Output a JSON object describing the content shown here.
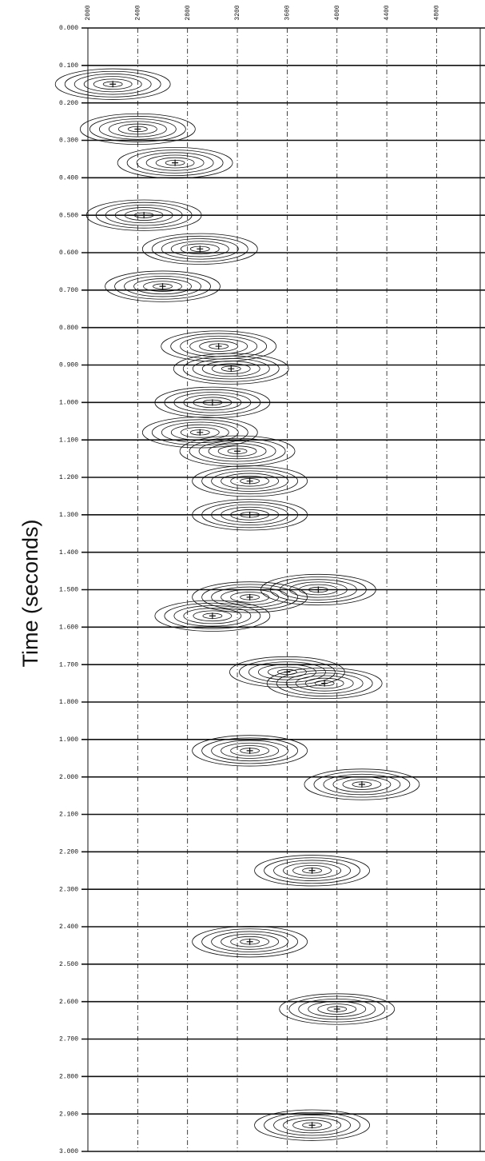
{
  "chart_data": {
    "type": "contour",
    "y_axis_label": "Time (seconds)",
    "xlim": [
      2000,
      5150
    ],
    "ylim": [
      0,
      3
    ],
    "y_inverted": true,
    "grid": true,
    "color": "#111111",
    "xticks": [
      2000,
      2400,
      2800,
      3200,
      3600,
      4000,
      4400,
      4800
    ],
    "yticks": [
      {
        "value": 0,
        "label": "0.000"
      },
      {
        "value": 0.1,
        "label": "0.100"
      },
      {
        "value": 0.2,
        "label": "0.200"
      },
      {
        "value": 0.3,
        "label": "0.300"
      },
      {
        "value": 0.4,
        "label": "0.400"
      },
      {
        "value": 0.5,
        "label": "0.500"
      },
      {
        "value": 0.6,
        "label": "0.600"
      },
      {
        "value": 0.7,
        "label": "0.700"
      },
      {
        "value": 0.8,
        "label": "0.800"
      },
      {
        "value": 0.9,
        "label": "0.900"
      },
      {
        "value": 1,
        "label": "1.000"
      },
      {
        "value": 1.1,
        "label": "1.100"
      },
      {
        "value": 1.2,
        "label": "1.200"
      },
      {
        "value": 1.3,
        "label": "1.300"
      },
      {
        "value": 1.4,
        "label": "1.400"
      },
      {
        "value": 1.5,
        "label": "1.500"
      },
      {
        "value": 1.6,
        "label": "1.600"
      },
      {
        "value": 1.7,
        "label": "1.700"
      },
      {
        "value": 1.8,
        "label": "1.800"
      },
      {
        "value": 1.9,
        "label": "1.900"
      },
      {
        "value": 2,
        "label": "2.000"
      },
      {
        "value": 2.1,
        "label": "2.100"
      },
      {
        "value": 2.2,
        "label": "2.200"
      },
      {
        "value": 2.3,
        "label": "2.300"
      },
      {
        "value": 2.4,
        "label": "2.400"
      },
      {
        "value": 2.5,
        "label": "2.500"
      },
      {
        "value": 2.6,
        "label": "2.600"
      },
      {
        "value": 2.7,
        "label": "2.700"
      },
      {
        "value": 2.8,
        "label": "2.800"
      },
      {
        "value": 2.9,
        "label": "2.900"
      },
      {
        "value": 3,
        "label": "3.000"
      }
    ],
    "x": [
      2200,
      2400,
      2700,
      2450,
      2900,
      2600,
      3050,
      3150,
      3000,
      2900,
      3200,
      3300,
      3300,
      3850,
      3300,
      3000,
      3600,
      3900,
      3300,
      4200,
      3800,
      3300,
      4000,
      3800
    ],
    "values": [
      0.15,
      0.27,
      0.36,
      0.5,
      0.59,
      0.69,
      0.85,
      0.91,
      1.0,
      1.08,
      1.13,
      1.21,
      1.3,
      1.5,
      1.52,
      1.57,
      1.72,
      1.75,
      1.93,
      2.02,
      2.25,
      2.44,
      2.62,
      2.93
    ]
  }
}
